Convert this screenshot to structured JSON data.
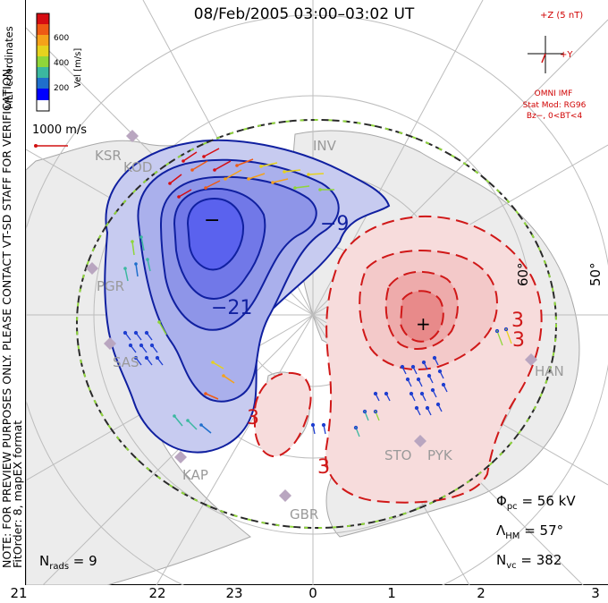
{
  "title": "08/Feb/2005  03:00–03:02  UT",
  "notes": {
    "line1": "NOTE: FOR PREVIEW PURPOSES ONLY. PLEASE CONTACT VT-SD STAFF FOR VERIFICATION.",
    "line2": "FitOrder: 8,  mapEX format"
  },
  "coords_label": "MLT coordinates",
  "colorbar": {
    "label": "Vel [m/s]",
    "ticks": [
      "600",
      "400",
      "200"
    ],
    "colors": [
      "#0000ff",
      "#1f6fcc",
      "#3bb8a0",
      "#8fd63a",
      "#e6d21e",
      "#f5a21a",
      "#ee5a14",
      "#d60c12"
    ]
  },
  "scale_vector": {
    "label": "1000 m/s",
    "color": "#d01010"
  },
  "imf": {
    "z_label": "+Z (5 nT)",
    "y_label": "+Y",
    "source": "OMNI IMF",
    "model": "Stat Mod: RG96",
    "condition": "Bz−, 0<BT<4"
  },
  "stations": [
    "KSR",
    "KOD",
    "PGR",
    "SAS",
    "KAP",
    "GBR",
    "STO",
    "PYK",
    "HAN",
    "INV"
  ],
  "contour_labels": {
    "neg_a": "−9",
    "neg_b": "−21",
    "pos_a": "3",
    "pos_b": "3",
    "pos_c": "3",
    "pos_d": "3"
  },
  "latitude_labels": [
    "60°",
    "50°"
  ],
  "potential_markers": {
    "min": "−",
    "max": "+"
  },
  "stats": {
    "phi_pc_sym": "Φ",
    "phi_pc_sub": "pc",
    "phi_pc_val": " = 56 kV",
    "lambda_sym": "Λ",
    "lambda_sub": "HM",
    "lambda_val": " = 57°",
    "nvc_sym": "N",
    "nvc_sub": "vc",
    "nvc_val": " = 382",
    "nrads_sym": "N",
    "nrads_sub": "rads",
    "nrads_val": " = 9"
  },
  "mlt_ticks": [
    "21",
    "22",
    "23",
    "0",
    "1",
    "2",
    "3"
  ],
  "colors": {
    "negative_fill": "#c7cbf0",
    "negative_core": "#5a62ee",
    "negative_line": "#1020a0",
    "positive_fill": "#f7dcdc",
    "positive_core": "#e88a8a",
    "positive_line": "#d01818",
    "land": "#ececec",
    "station_marker": "#b9a6c0",
    "boundary": "#2a2a2a"
  }
}
